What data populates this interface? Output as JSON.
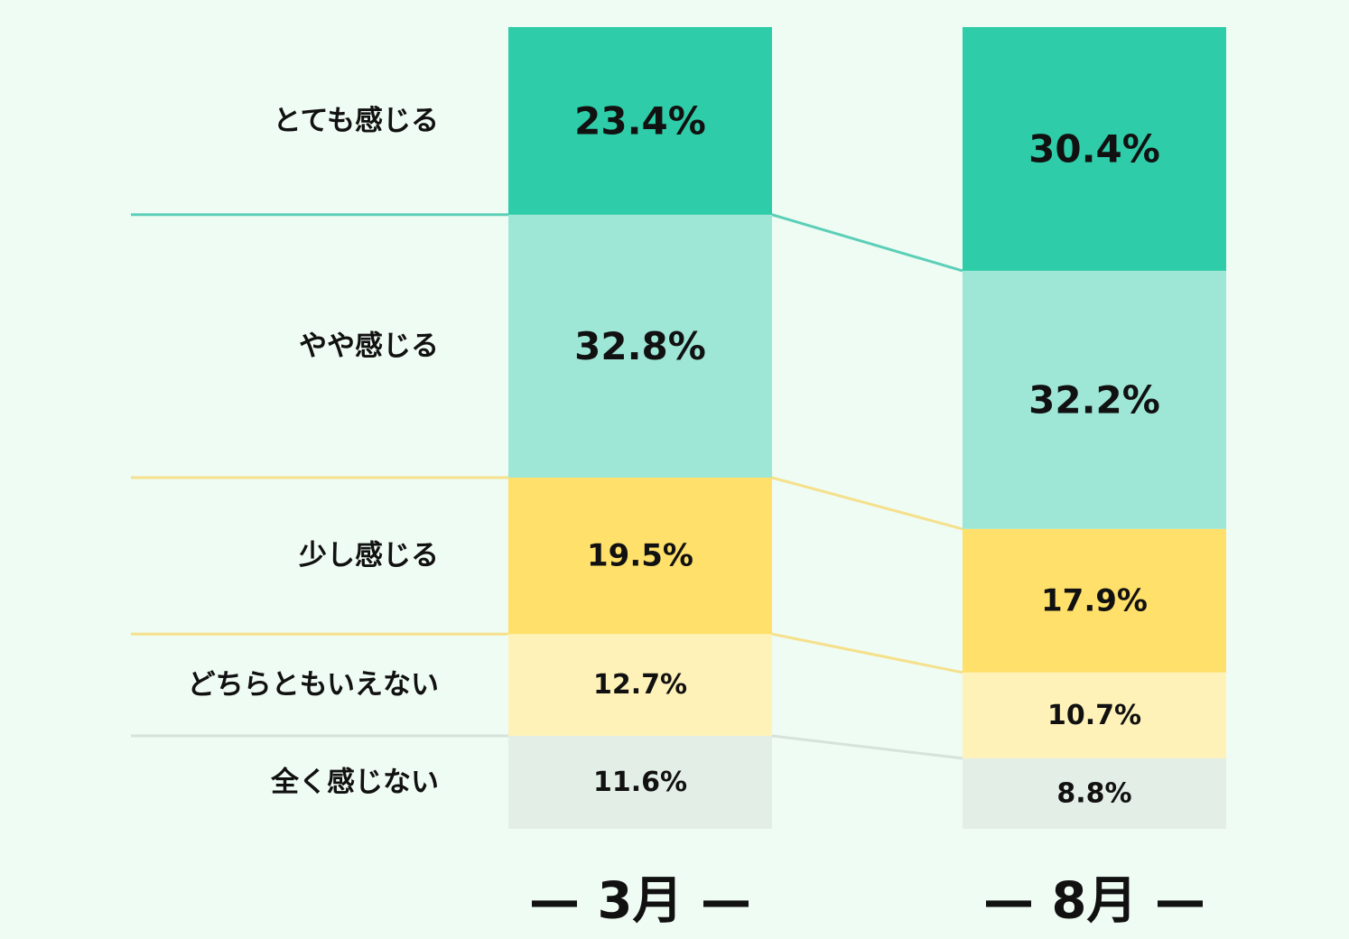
{
  "chart_data": {
    "type": "bar",
    "stacked": true,
    "orientation": "vertical",
    "categories": [
      "3月",
      "8月"
    ],
    "category_labels": [
      "— 3月 —",
      "— 8月 —"
    ],
    "series": [
      {
        "name": "とても感じる",
        "values": [
          23.4,
          30.4
        ],
        "labels": [
          "23.4%",
          "30.4%"
        ],
        "color": "#2ecca8"
      },
      {
        "name": "やや感じる",
        "values": [
          32.8,
          32.2
        ],
        "labels": [
          "32.8%",
          "32.2%"
        ],
        "color": "#9ee6d6"
      },
      {
        "name": "少し感じる",
        "values": [
          19.5,
          17.9
        ],
        "labels": [
          "19.5%",
          "17.9%"
        ],
        "color": "#ffe06a"
      },
      {
        "name": "どちらともいえない",
        "values": [
          12.7,
          10.7
        ],
        "labels": [
          "12.7%",
          "10.7%"
        ],
        "color": "#fff2b8"
      },
      {
        "name": "全く感じない",
        "values": [
          11.6,
          8.8
        ],
        "labels": [
          "11.6%",
          "8.8%"
        ],
        "color": "#e3eee6"
      }
    ],
    "connector_colors": [
      "#5ccfb8",
      "#f5e08c",
      "#f5e08c",
      "#d6e2da"
    ],
    "legend": "left"
  }
}
